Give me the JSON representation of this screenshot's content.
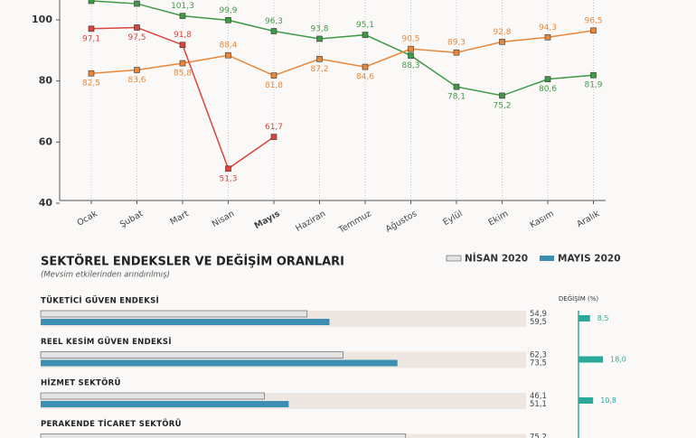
{
  "chart_data": [
    {
      "type": "line",
      "categories": [
        "Ocak",
        "Şubat",
        "Mart",
        "Nisan",
        "Mayıs",
        "Haziran",
        "Temmuz",
        "Ağustos",
        "Eylül",
        "Ekim",
        "Kasım",
        "Aralık"
      ],
      "ylim": [
        40,
        106.5
      ],
      "yticks": [
        40,
        60,
        80,
        100
      ],
      "grid": true,
      "series": [
        {
          "color": "#3f9a45",
          "values": [
            106.2,
            105.3,
            101.3,
            99.9,
            96.3,
            93.8,
            95.1,
            88.3,
            78.1,
            75.2,
            80.6,
            81.9
          ],
          "value_labels": [
            null,
            null,
            "101,3",
            "99,9",
            "96,3",
            "93,8",
            "95,1",
            "88,3",
            "78,1",
            "75,2",
            "80,6",
            "81,9"
          ]
        },
        {
          "color": "#e8873a",
          "values": [
            82.5,
            83.6,
            85.8,
            88.4,
            81.8,
            87.2,
            84.6,
            90.5,
            89.3,
            92.8,
            94.3,
            96.5
          ],
          "value_labels": [
            "82,5",
            "83,6",
            "85,8",
            "88,4",
            "81,8",
            "87,2",
            "84,6",
            "90,5",
            "89,3",
            "92,8",
            "94,3",
            "96,5"
          ]
        },
        {
          "color": "#d9443d",
          "values": [
            97.1,
            97.5,
            91.8,
            51.3,
            61.7,
            null,
            null,
            null,
            null,
            null,
            null,
            null
          ],
          "value_labels": [
            "97,1",
            "97,5",
            "91,8",
            "51,3",
            "61,7",
            null,
            null,
            null,
            null,
            null,
            null,
            null
          ]
        }
      ]
    },
    {
      "type": "hbar",
      "title": "SEKTÖREL ENDEKSLER VE DEĞİŞİM ORANLARI",
      "subtitle": "(Mevsim etkilerinden arındırılmış)",
      "categories": [
        "TÜKETİCİ GÜVEN ENDEKSİ",
        "REEL KESİM GÜVEN ENDEKSİ",
        "HİZMET SEKTÖRÜ",
        "PERAKENDE TİCARET SEKTÖRÜ"
      ],
      "xlim": [
        0,
        100
      ],
      "series": [
        {
          "name": "NİSAN 2020",
          "color": "#e4e4e4",
          "values": [
            54.9,
            62.3,
            46.1,
            75.2
          ],
          "value_labels": [
            "54,9",
            "62,3",
            "46,1",
            "75,2"
          ]
        },
        {
          "name": "MAYIS 2020",
          "color": "#3a8fb3",
          "values": [
            59.5,
            73.5,
            51.1,
            null
          ],
          "value_labels": [
            "59,5",
            "73,5",
            "51,1",
            null
          ]
        }
      ],
      "change": {
        "title": "DEĞİŞİM (%)",
        "color": "#2aa89a",
        "xlim": [
          0,
          40
        ],
        "values": [
          8.5,
          18.0,
          10.8,
          null
        ],
        "value_labels": [
          "8,5",
          "18,0",
          "10,8",
          null
        ]
      }
    }
  ]
}
